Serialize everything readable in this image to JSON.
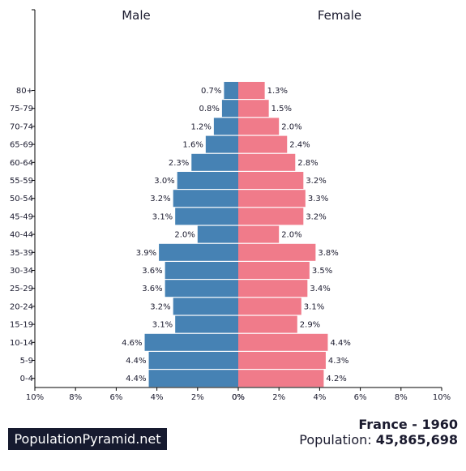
{
  "chart_data": {
    "type": "bar",
    "orientation": "horizontal-pyramid",
    "categories": [
      "80+",
      "75-79",
      "70-74",
      "65-69",
      "60-64",
      "55-59",
      "50-54",
      "45-49",
      "40-44",
      "35-39",
      "30-34",
      "25-29",
      "20-24",
      "15-19",
      "10-14",
      "5-9",
      "0-4"
    ],
    "series": [
      {
        "name": "Male",
        "color": "#4682b4",
        "values": [
          0.7,
          0.8,
          1.2,
          1.6,
          2.3,
          3.0,
          3.2,
          3.1,
          2.0,
          3.9,
          3.6,
          3.6,
          3.2,
          3.1,
          4.6,
          4.4,
          4.4
        ],
        "labels": [
          "0.7%",
          "0.8%",
          "1.2%",
          "1.6%",
          "2.3%",
          "3.0%",
          "3.2%",
          "3.1%",
          "2.0%",
          "3.9%",
          "3.6%",
          "3.6%",
          "3.2%",
          "3.1%",
          "4.6%",
          "4.4%",
          "4.4%"
        ]
      },
      {
        "name": "Female",
        "color": "#f07b8a",
        "values": [
          1.3,
          1.5,
          2.0,
          2.4,
          2.8,
          3.2,
          3.3,
          3.2,
          2.0,
          3.8,
          3.5,
          3.4,
          3.1,
          2.9,
          4.4,
          4.3,
          4.2
        ],
        "labels": [
          "1.3%",
          "1.5%",
          "2.0%",
          "2.4%",
          "2.8%",
          "3.2%",
          "3.3%",
          "3.2%",
          "2.0%",
          "3.8%",
          "3.5%",
          "3.4%",
          "3.1%",
          "2.9%",
          "4.4%",
          "4.3%",
          "4.2%"
        ]
      }
    ],
    "xlim": [
      0,
      10
    ],
    "x_ticks": [
      10,
      8,
      6,
      4,
      2,
      0,
      2,
      4,
      6,
      8,
      10
    ],
    "x_tick_labels_left": [
      "10%",
      "8%",
      "6%",
      "4%",
      "2%",
      "0%"
    ],
    "x_tick_labels_right": [
      "0%",
      "2%",
      "4%",
      "6%",
      "8%",
      "10%"
    ],
    "grid": false,
    "legend": "none"
  },
  "footer": {
    "brand": "PopulationPyramid.net",
    "country_year": "France - 1960",
    "population_label": "Population:",
    "population_value": "45,865,698"
  }
}
